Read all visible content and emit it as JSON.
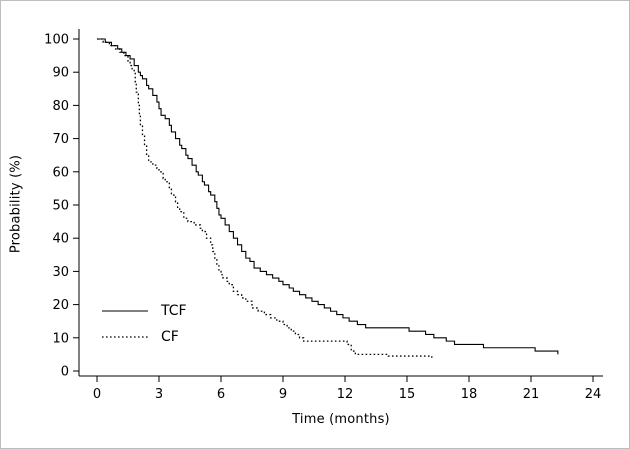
{
  "chart_data": {
    "type": "line",
    "subtype": "kaplan-meier-step",
    "title": "",
    "xlabel": "Time (months)",
    "ylabel": "Probability (%)",
    "xlim": [
      0,
      24
    ],
    "ylim": [
      0,
      100
    ],
    "xticks": [
      0,
      3,
      6,
      9,
      12,
      15,
      18,
      21,
      24
    ],
    "yticks": [
      0,
      10,
      20,
      30,
      40,
      50,
      60,
      70,
      80,
      90,
      100
    ],
    "grid": false,
    "legend_position": "inside-lower-left",
    "axis_color": "#000000",
    "series": [
      {
        "name": "TCF",
        "style": "solid",
        "color": "#000000",
        "points": [
          [
            0,
            100
          ],
          [
            0.4,
            99
          ],
          [
            0.7,
            98
          ],
          [
            1.0,
            97
          ],
          [
            1.2,
            96
          ],
          [
            1.4,
            95
          ],
          [
            1.6,
            94
          ],
          [
            1.8,
            92
          ],
          [
            2.0,
            90
          ],
          [
            2.1,
            89
          ],
          [
            2.2,
            88
          ],
          [
            2.4,
            86
          ],
          [
            2.5,
            85
          ],
          [
            2.7,
            83
          ],
          [
            2.9,
            81
          ],
          [
            3.0,
            79
          ],
          [
            3.1,
            77
          ],
          [
            3.3,
            76
          ],
          [
            3.5,
            74
          ],
          [
            3.6,
            72
          ],
          [
            3.8,
            70
          ],
          [
            4.0,
            68
          ],
          [
            4.1,
            67
          ],
          [
            4.3,
            65
          ],
          [
            4.4,
            64
          ],
          [
            4.6,
            62
          ],
          [
            4.8,
            60
          ],
          [
            4.9,
            59
          ],
          [
            5.1,
            57
          ],
          [
            5.2,
            56
          ],
          [
            5.4,
            54
          ],
          [
            5.5,
            53
          ],
          [
            5.7,
            51
          ],
          [
            5.8,
            49
          ],
          [
            5.9,
            47
          ],
          [
            6.0,
            46
          ],
          [
            6.2,
            44
          ],
          [
            6.4,
            42
          ],
          [
            6.6,
            40
          ],
          [
            6.8,
            38
          ],
          [
            7.0,
            36
          ],
          [
            7.2,
            34
          ],
          [
            7.4,
            33
          ],
          [
            7.6,
            31
          ],
          [
            7.9,
            30
          ],
          [
            8.2,
            29
          ],
          [
            8.5,
            28
          ],
          [
            8.8,
            27
          ],
          [
            9.0,
            26
          ],
          [
            9.3,
            25
          ],
          [
            9.5,
            24
          ],
          [
            9.8,
            23
          ],
          [
            10.1,
            22
          ],
          [
            10.4,
            21
          ],
          [
            10.7,
            20
          ],
          [
            11.0,
            19
          ],
          [
            11.3,
            18
          ],
          [
            11.6,
            17
          ],
          [
            11.9,
            16
          ],
          [
            12.2,
            15
          ],
          [
            12.6,
            14
          ],
          [
            13.0,
            13
          ],
          [
            14.8,
            13
          ],
          [
            15.1,
            12
          ],
          [
            15.9,
            11
          ],
          [
            16.3,
            10
          ],
          [
            16.9,
            9
          ],
          [
            17.3,
            8
          ],
          [
            18.4,
            8
          ],
          [
            18.7,
            7
          ],
          [
            20.9,
            7
          ],
          [
            21.2,
            6
          ],
          [
            22.1,
            6
          ],
          [
            22.3,
            5
          ]
        ]
      },
      {
        "name": "CF",
        "style": "dotted",
        "color": "#000000",
        "points": [
          [
            0,
            100
          ],
          [
            0.3,
            99
          ],
          [
            0.6,
            98
          ],
          [
            0.9,
            97
          ],
          [
            1.1,
            96
          ],
          [
            1.3,
            95
          ],
          [
            1.5,
            93
          ],
          [
            1.6,
            92
          ],
          [
            1.7,
            91
          ],
          [
            1.8,
            90
          ],
          [
            1.85,
            87
          ],
          [
            1.9,
            84
          ],
          [
            2.0,
            80
          ],
          [
            2.05,
            77
          ],
          [
            2.1,
            74
          ],
          [
            2.2,
            71
          ],
          [
            2.3,
            68
          ],
          [
            2.4,
            65
          ],
          [
            2.5,
            63
          ],
          [
            2.7,
            62
          ],
          [
            2.9,
            61
          ],
          [
            3.0,
            60
          ],
          [
            3.2,
            58
          ],
          [
            3.3,
            57
          ],
          [
            3.5,
            55
          ],
          [
            3.6,
            53
          ],
          [
            3.8,
            51
          ],
          [
            3.9,
            49
          ],
          [
            4.0,
            48
          ],
          [
            4.2,
            46
          ],
          [
            4.4,
            45
          ],
          [
            4.7,
            44
          ],
          [
            5.0,
            43
          ],
          [
            5.1,
            42
          ],
          [
            5.3,
            40
          ],
          [
            5.5,
            38
          ],
          [
            5.6,
            36
          ],
          [
            5.7,
            34
          ],
          [
            5.8,
            32
          ],
          [
            5.9,
            30
          ],
          [
            6.0,
            29
          ],
          [
            6.1,
            28
          ],
          [
            6.3,
            27
          ],
          [
            6.4,
            26
          ],
          [
            6.6,
            24
          ],
          [
            6.8,
            23
          ],
          [
            7.0,
            22
          ],
          [
            7.2,
            21
          ],
          [
            7.5,
            19
          ],
          [
            7.8,
            18
          ],
          [
            8.1,
            17
          ],
          [
            8.4,
            16
          ],
          [
            8.7,
            15
          ],
          [
            9.0,
            14
          ],
          [
            9.2,
            13
          ],
          [
            9.4,
            12
          ],
          [
            9.6,
            11
          ],
          [
            9.8,
            10
          ],
          [
            10.0,
            9
          ],
          [
            11.9,
            9
          ],
          [
            12.1,
            8
          ],
          [
            12.3,
            6
          ],
          [
            12.5,
            5
          ],
          [
            13.6,
            5
          ],
          [
            14.1,
            4.5
          ],
          [
            16.0,
            4.5
          ],
          [
            16.2,
            4
          ]
        ]
      }
    ]
  }
}
